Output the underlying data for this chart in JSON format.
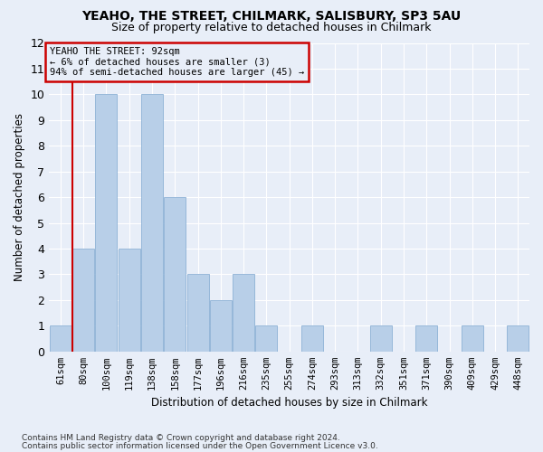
{
  "title": "YEAHO, THE STREET, CHILMARK, SALISBURY, SP3 5AU",
  "subtitle": "Size of property relative to detached houses in Chilmark",
  "xlabel": "Distribution of detached houses by size in Chilmark",
  "ylabel": "Number of detached properties",
  "bar_labels": [
    "61sqm",
    "80sqm",
    "100sqm",
    "119sqm",
    "138sqm",
    "158sqm",
    "177sqm",
    "196sqm",
    "216sqm",
    "235sqm",
    "255sqm",
    "274sqm",
    "293sqm",
    "313sqm",
    "332sqm",
    "351sqm",
    "371sqm",
    "390sqm",
    "409sqm",
    "429sqm",
    "448sqm"
  ],
  "bar_values": [
    1,
    4,
    10,
    4,
    10,
    6,
    3,
    2,
    3,
    1,
    0,
    1,
    0,
    0,
    1,
    0,
    1,
    0,
    1,
    0,
    1
  ],
  "bar_color": "#b8cfe8",
  "bar_edge_color": "#7fa8d0",
  "red_line_x": 0.5,
  "annotation_title": "YEAHO THE STREET: 92sqm",
  "annotation_line1": "← 6% of detached houses are smaller (3)",
  "annotation_line2": "94% of semi-detached houses are larger (45) →",
  "ylim": [
    0,
    12
  ],
  "yticks": [
    0,
    1,
    2,
    3,
    4,
    5,
    6,
    7,
    8,
    9,
    10,
    11,
    12
  ],
  "footer_line1": "Contains HM Land Registry data © Crown copyright and database right 2024.",
  "footer_line2": "Contains public sector information licensed under the Open Government Licence v3.0.",
  "bg_color": "#e8eef8",
  "grid_color": "#ffffff",
  "red_color": "#cc0000"
}
